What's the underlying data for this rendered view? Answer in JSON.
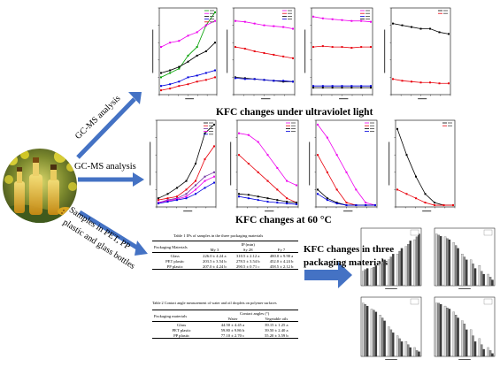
{
  "labels": {
    "gcms_top": "GC-MS analysis",
    "gcms_mid": "GC-MS analysis",
    "samples_line1": "Samples in PET, PP",
    "samples_line2": "plastic and glass bottles"
  },
  "headings": {
    "uv": "KFC changes under ultraviolet light",
    "heat_prefix": "KFC changes at 60 ",
    "heat_unit": "°C",
    "pack_line1": "KFC changes in three",
    "pack_line2": "packaging materials"
  },
  "table1": {
    "title": "Table 1 IPs of samples in the three packaging materials",
    "col_group": "Packaging Materials",
    "ip_header": "IP (min)",
    "cols": [
      "My 3",
      "Sy 28",
      "Fy 7"
    ],
    "rows": [
      {
        "name": "Glass",
        "v": [
          "226.0 ± 4.24 a",
          "310.5 ± 2.12 a",
          "480.0 ± 9.90 a"
        ]
      },
      {
        "name": "PET plastic",
        "v": [
          "203.5 ± 3.54 b",
          "278.5 ± 3.54 b",
          "452.0 ± 4.24 b"
        ]
      },
      {
        "name": "PP plastic",
        "v": [
          "207.0 ± 4.24 b",
          "290.5 ± 0.71 c",
          "458.5 ± 2.12 b"
        ]
      }
    ]
  },
  "table2": {
    "title": "Table 2 Contact angle measurement of water and oil droplets on polymer surfaces",
    "col_group": "Packaging materials",
    "angle_header": "Contact angles (°)",
    "cols": [
      "Water",
      "Vegetable oils"
    ],
    "rows": [
      {
        "name": "Glass",
        "v": [
          "44.50 ± 4.45 a",
          "39.15 ± 1.25 a"
        ]
      },
      {
        "name": "PET plastic",
        "v": [
          "59.80 ± 9.86 b",
          "39.50 ± 2.40 a"
        ]
      },
      {
        "name": "PP plastic",
        "v": [
          "77.10 ± 2.70 c",
          "55.20 ± 3.59 b"
        ]
      }
    ]
  },
  "colors": {
    "arrow": "#4472c4",
    "black": "#000000",
    "red": "#e8000b",
    "blue": "#0000dd",
    "green": "#00a000",
    "magenta": "#ee00ee",
    "purple": "#7030a0",
    "grey": "#8c8c8c",
    "dark": "#3a3a3a",
    "light": "#d8d8d8"
  },
  "photo_icon": "oil-bottles-rapeseed-photo"
}
